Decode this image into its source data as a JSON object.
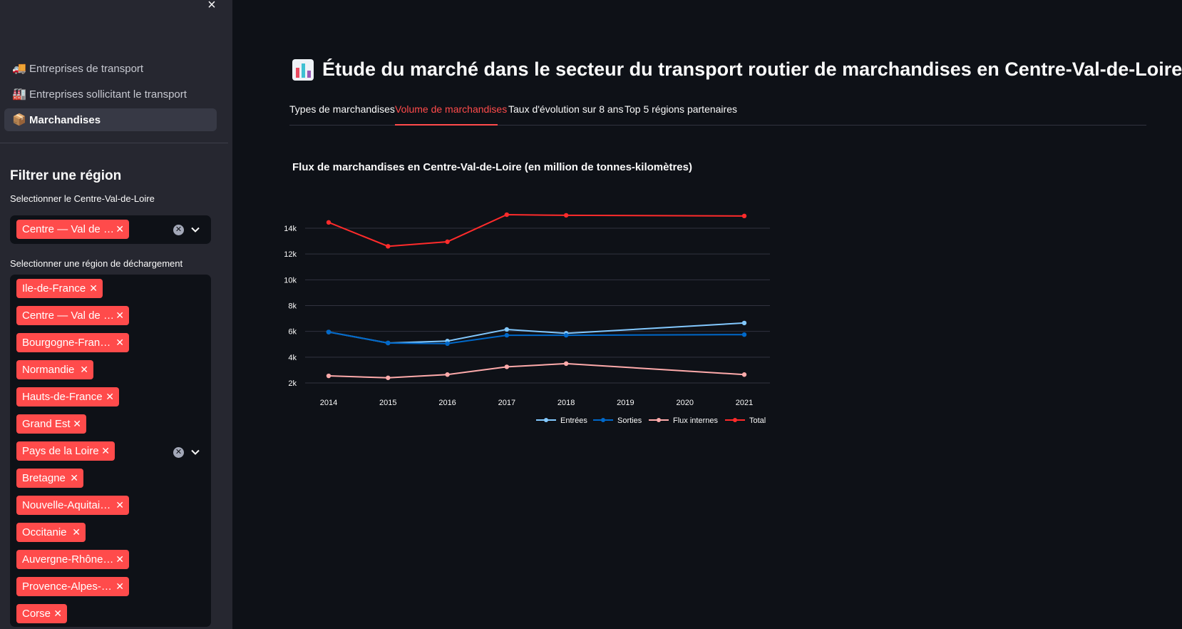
{
  "sidebar": {
    "close_icon": "×",
    "nav": [
      {
        "icon": "🚚",
        "label": "Entreprises de transport",
        "active": false
      },
      {
        "icon": "🏭",
        "label": "Entreprises sollicitant le transport",
        "active": false
      },
      {
        "icon": "📦",
        "label": "Marchandises",
        "active": true
      }
    ],
    "filter_title": "Filtrer une région",
    "select_centre": {
      "label": "Selectionner le Centre-Val-de-Loire",
      "tags": [
        "Centre — Val de …"
      ]
    },
    "select_dechargement": {
      "label": "Selectionner une région de déchargement",
      "tags": [
        "Ile-de-France",
        "Centre — Val de …",
        "Bourgogne-Fran…",
        "Normandie",
        "Hauts-de-France",
        "Grand Est",
        "Pays de la Loire",
        "Bretagne",
        "Nouvelle-Aquitai…",
        "Occitanie",
        "Auvergne-Rhône…",
        "Provence-Alpes-…",
        "Corse"
      ]
    }
  },
  "main": {
    "title": "Étude du marché dans le secteur du transport routier de marchandises en Centre-Val-de-Loire",
    "tabs": [
      {
        "label": "Types de marchandises",
        "active": false
      },
      {
        "label": "Volume de marchandises",
        "active": true
      },
      {
        "label": "Taux d'évolution sur 8 ans",
        "active": false
      },
      {
        "label": "Top 5 régions partenaires",
        "active": false
      }
    ]
  },
  "chart_data": {
    "type": "line",
    "title": "Flux de marchandises en Centre-Val-de-Loire (en million de tonnes-kilomètres)",
    "ylim": [
      2000,
      15000
    ],
    "yticks": [
      2000,
      4000,
      6000,
      8000,
      10000,
      12000,
      14000
    ],
    "ytick_labels": [
      "2k",
      "4k",
      "6k",
      "8k",
      "10k",
      "12k",
      "14k"
    ],
    "xticks": [
      2014,
      2015,
      2016,
      2017,
      2018,
      2019,
      2020,
      2021
    ],
    "grid": true,
    "legend_position": "bottom-right",
    "series": [
      {
        "name": "Entrées",
        "color": "#83c9ff",
        "x": [
          2014,
          2015,
          2016,
          2017,
          2018,
          2021
        ],
        "values": [
          5950,
          5100,
          5250,
          6150,
          5850,
          6650
        ]
      },
      {
        "name": "Sorties",
        "color": "#0068c9",
        "x": [
          2014,
          2015,
          2016,
          2017,
          2018,
          2021
        ],
        "values": [
          5950,
          5100,
          5050,
          5700,
          5700,
          5750
        ]
      },
      {
        "name": "Flux internes",
        "color": "#ffabab",
        "x": [
          2014,
          2015,
          2016,
          2017,
          2018,
          2021
        ],
        "values": [
          2550,
          2400,
          2650,
          3250,
          3500,
          2650
        ]
      },
      {
        "name": "Total",
        "color": "#ff2b2b",
        "x": [
          2014,
          2015,
          2016,
          2017,
          2018,
          2021
        ],
        "values": [
          14450,
          12600,
          12950,
          15050,
          15000,
          14950
        ]
      }
    ]
  },
  "colors": {
    "accent": "#ff4b4b",
    "sidebar_bg": "#262730",
    "main_bg": "#0e1117"
  }
}
